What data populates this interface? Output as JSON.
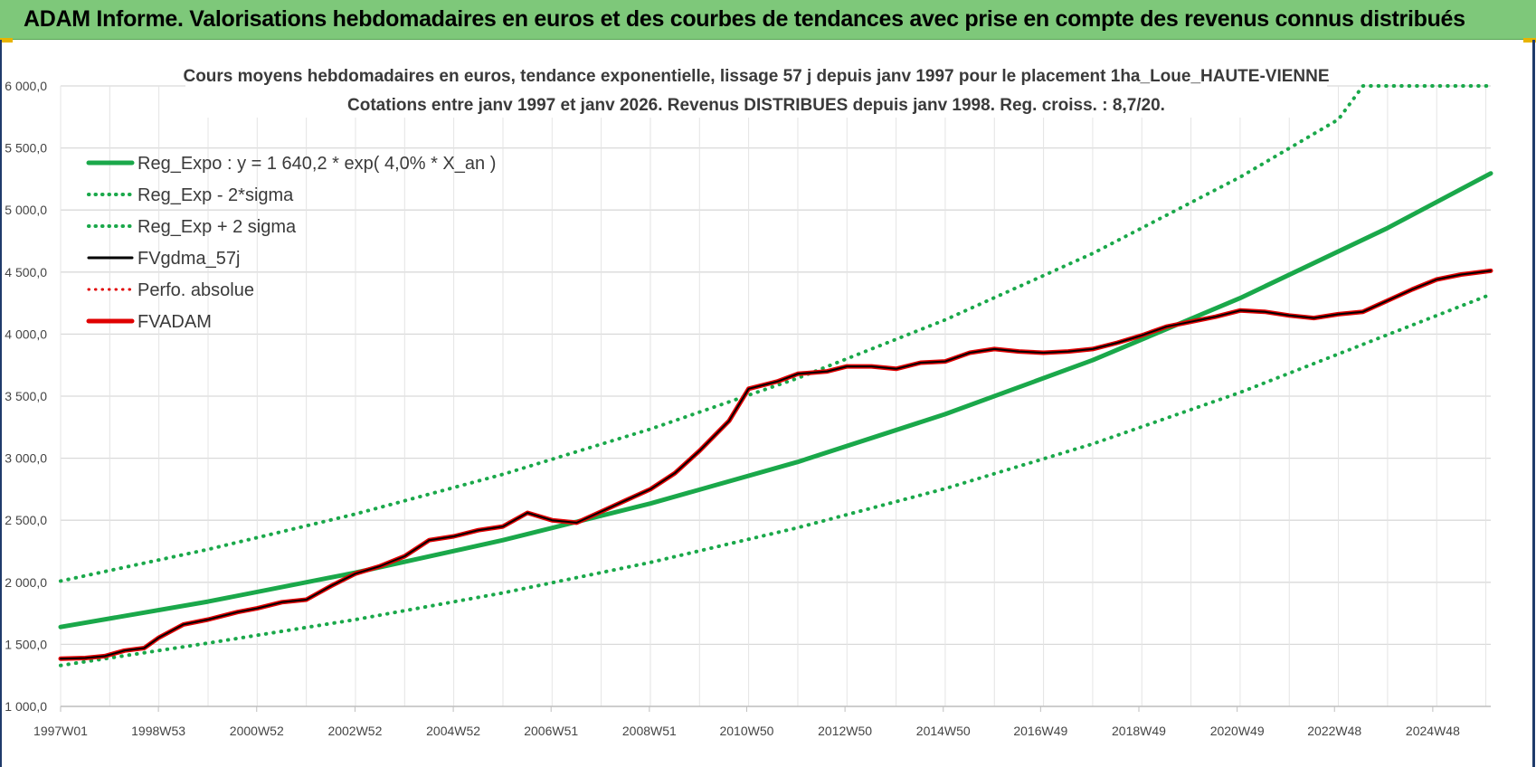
{
  "banner": {
    "title": "ADAM Informe. Valorisations hebdomadaires en euros et des courbes de tendances avec prise en compte des revenus connus distribués"
  },
  "chart_data": {
    "type": "line",
    "title_line1": "Cours moyens hebdomadaires en euros, tendance exponentielle, lissage 57 j depuis janv 1997 pour le placement 1ha_Loue_HAUTE-VIENNE",
    "title_line2": "Cotations entre janv 1997 et janv 2026. Revenus DISTRIBUES depuis janv 1998. Reg. croiss. : 8,7/20.",
    "xlabel": "",
    "ylabel": "",
    "xlim": [
      1997.0,
      2026.1
    ],
    "ylim": [
      1000,
      6000
    ],
    "yticks": [
      1000,
      1500,
      2000,
      2500,
      3000,
      3500,
      4000,
      4500,
      5000,
      5500,
      6000
    ],
    "ytick_labels": [
      "1 000,0",
      "1 500,0",
      "2 000,0",
      "2 500,0",
      "3 000,0",
      "3 500,0",
      "4 000,0",
      "4 500,0",
      "5 000,0",
      "5 500,0",
      "6 000,0"
    ],
    "xticks": [
      {
        "x": 1997.0,
        "label": "1997W01"
      },
      {
        "x": 1998.99,
        "label": "1998W53"
      },
      {
        "x": 2000.99,
        "label": "2000W52"
      },
      {
        "x": 2002.99,
        "label": "2002W52"
      },
      {
        "x": 2004.99,
        "label": "2004W52"
      },
      {
        "x": 2006.98,
        "label": "2006W51"
      },
      {
        "x": 2008.98,
        "label": "2008W51"
      },
      {
        "x": 2010.96,
        "label": "2010W50"
      },
      {
        "x": 2012.96,
        "label": "2012W50"
      },
      {
        "x": 2014.96,
        "label": "2014W50"
      },
      {
        "x": 2016.94,
        "label": "2016W49"
      },
      {
        "x": 2018.94,
        "label": "2018W49"
      },
      {
        "x": 2020.94,
        "label": "2020W49"
      },
      {
        "x": 2022.92,
        "label": "2022W48"
      },
      {
        "x": 2024.92,
        "label": "2024W48"
      }
    ],
    "grid": true,
    "legend_position": "top-left",
    "legend": [
      {
        "label": "Reg_Expo : y = 1 640,2 * exp( 4,0% *  X_an )",
        "color": "#1aa84a",
        "style": "solid",
        "width": 5
      },
      {
        "label": "Reg_Exp - 2*sigma",
        "color": "#1aa84a",
        "style": "dotted",
        "width": 4
      },
      {
        "label": "Reg_Exp + 2 sigma",
        "color": "#1aa84a",
        "style": "dotted",
        "width": 4
      },
      {
        "label": "FVgdma_57j",
        "color": "#000000",
        "style": "solid",
        "width": 3
      },
      {
        "label": "Perfo. absolue",
        "color": "#e00000",
        "style": "dotted",
        "width": 3
      },
      {
        "label": "FVADAM",
        "color": "#e00000",
        "style": "solid",
        "width": 5
      }
    ],
    "series": [
      {
        "name": "Reg_Expo",
        "color": "#1aa84a",
        "style": "solid",
        "x": [
          1997.0,
          2000.0,
          2003.0,
          2006.0,
          2009.0,
          2012.0,
          2015.0,
          2018.0,
          2021.0,
          2024.0,
          2026.1
        ],
        "values": [
          1640,
          1845,
          2078,
          2340,
          2635,
          2970,
          3355,
          3790,
          4290,
          4855,
          5295
        ]
      },
      {
        "name": "Reg_Exp - 2*sigma",
        "color": "#1aa84a",
        "style": "dotted",
        "x": [
          1997.0,
          2000.0,
          2003.0,
          2006.0,
          2009.0,
          2012.0,
          2015.0,
          2018.0,
          2021.0,
          2024.0,
          2026.1
        ],
        "values": [
          1330,
          1510,
          1700,
          1915,
          2160,
          2440,
          2755,
          3115,
          3530,
          3995,
          4320
        ]
      },
      {
        "name": "Reg_Exp + 2 sigma",
        "color": "#1aa84a",
        "style": "dotted",
        "x": [
          1997.0,
          2000.0,
          2003.0,
          2006.0,
          2009.0,
          2012.0,
          2015.0,
          2018.0,
          2021.0,
          2023.0,
          2023.5,
          2026.1
        ],
        "values": [
          2010,
          2265,
          2550,
          2870,
          3235,
          3645,
          4115,
          4650,
          5265,
          5730,
          6000,
          6000
        ]
      },
      {
        "name": "FVgdma_57j",
        "color": "#000000",
        "style": "solid",
        "x": [
          1997.0,
          1997.5,
          1997.9,
          1998.3,
          1998.7,
          1999.0,
          1999.5,
          2000.0,
          2000.6,
          2001.0,
          2001.5,
          2002.0,
          2002.5,
          2003.0,
          2003.5,
          2004.0,
          2004.5,
          2005.0,
          2005.5,
          2006.0,
          2006.5,
          2007.0,
          2007.5,
          2008.0,
          2008.5,
          2009.0,
          2009.5,
          2010.0,
          2010.6,
          2011.0,
          2011.6,
          2012.0,
          2012.6,
          2013.0,
          2013.5,
          2014.0,
          2014.5,
          2015.0,
          2015.5,
          2016.0,
          2016.5,
          2017.0,
          2017.5,
          2018.0,
          2018.5,
          2019.0,
          2019.5,
          2020.0,
          2020.5,
          2021.0,
          2021.5,
          2022.0,
          2022.5,
          2023.0,
          2023.5,
          2024.0,
          2024.5,
          2025.0,
          2025.5,
          2026.1
        ],
        "values": [
          1385,
          1390,
          1405,
          1450,
          1470,
          1555,
          1660,
          1700,
          1760,
          1790,
          1840,
          1860,
          1970,
          2070,
          2130,
          2210,
          2340,
          2370,
          2420,
          2450,
          2560,
          2500,
          2480,
          2570,
          2660,
          2750,
          2880,
          3060,
          3300,
          3560,
          3620,
          3680,
          3700,
          3740,
          3740,
          3720,
          3770,
          3780,
          3850,
          3880,
          3860,
          3850,
          3860,
          3880,
          3930,
          3990,
          4060,
          4100,
          4140,
          4190,
          4180,
          4150,
          4130,
          4160,
          4180,
          4270,
          4360,
          4440,
          4480,
          4510
        ]
      },
      {
        "name": "Perfo. absolue",
        "color": "#e00000",
        "style": "dotted",
        "x": [
          1997.0,
          1997.5,
          1997.9,
          1998.3,
          1998.7,
          1999.0,
          1999.5,
          2000.0,
          2000.6,
          2001.0,
          2001.5,
          2002.0,
          2002.5,
          2003.0,
          2003.5,
          2004.0,
          2004.5,
          2005.0,
          2005.5,
          2006.0,
          2006.5,
          2007.0,
          2007.5,
          2008.0,
          2008.5,
          2009.0,
          2009.5,
          2010.0,
          2010.6,
          2011.0,
          2011.6,
          2012.0,
          2012.6,
          2013.0,
          2013.5,
          2014.0,
          2014.5,
          2015.0,
          2015.5,
          2016.0,
          2016.5,
          2017.0,
          2017.5,
          2018.0,
          2018.5,
          2019.0,
          2019.5,
          2020.0,
          2020.5,
          2021.0,
          2021.5,
          2022.0,
          2022.5,
          2023.0,
          2023.5,
          2024.0,
          2024.5,
          2025.0,
          2025.5,
          2026.1
        ],
        "values": [
          1385,
          1390,
          1405,
          1450,
          1470,
          1555,
          1660,
          1700,
          1760,
          1790,
          1840,
          1860,
          1970,
          2070,
          2130,
          2210,
          2340,
          2370,
          2420,
          2450,
          2560,
          2500,
          2480,
          2570,
          2660,
          2750,
          2880,
          3060,
          3300,
          3560,
          3620,
          3680,
          3700,
          3740,
          3740,
          3720,
          3770,
          3780,
          3850,
          3880,
          3860,
          3850,
          3860,
          3880,
          3930,
          3990,
          4060,
          4100,
          4140,
          4190,
          4180,
          4150,
          4130,
          4160,
          4180,
          4270,
          4360,
          4440,
          4480,
          4510
        ]
      },
      {
        "name": "FVADAM",
        "color": "#e00000",
        "style": "solid",
        "x": [
          1997.0,
          1997.5,
          1997.9,
          1998.3,
          1998.7,
          1999.0,
          1999.5,
          2000.0,
          2000.6,
          2001.0,
          2001.5,
          2002.0,
          2002.5,
          2003.0,
          2003.5,
          2004.0,
          2004.5,
          2005.0,
          2005.5,
          2006.0,
          2006.5,
          2007.0,
          2007.5,
          2008.0,
          2008.5,
          2009.0,
          2009.5,
          2010.0,
          2010.6,
          2011.0,
          2011.6,
          2012.0,
          2012.6,
          2013.0,
          2013.5,
          2014.0,
          2014.5,
          2015.0,
          2015.5,
          2016.0,
          2016.5,
          2017.0,
          2017.5,
          2018.0,
          2018.5,
          2019.0,
          2019.5,
          2020.0,
          2020.5,
          2021.0,
          2021.5,
          2022.0,
          2022.5,
          2023.0,
          2023.5,
          2024.0,
          2024.5,
          2025.0,
          2025.5,
          2026.1
        ],
        "values": [
          1385,
          1390,
          1405,
          1450,
          1470,
          1555,
          1660,
          1700,
          1760,
          1790,
          1840,
          1860,
          1970,
          2070,
          2130,
          2210,
          2340,
          2370,
          2420,
          2450,
          2560,
          2500,
          2480,
          2570,
          2660,
          2750,
          2880,
          3060,
          3300,
          3560,
          3620,
          3680,
          3700,
          3740,
          3740,
          3720,
          3770,
          3780,
          3850,
          3880,
          3860,
          3850,
          3860,
          3880,
          3930,
          3990,
          4060,
          4100,
          4140,
          4190,
          4180,
          4150,
          4130,
          4160,
          4180,
          4270,
          4360,
          4440,
          4480,
          4510
        ]
      }
    ]
  }
}
